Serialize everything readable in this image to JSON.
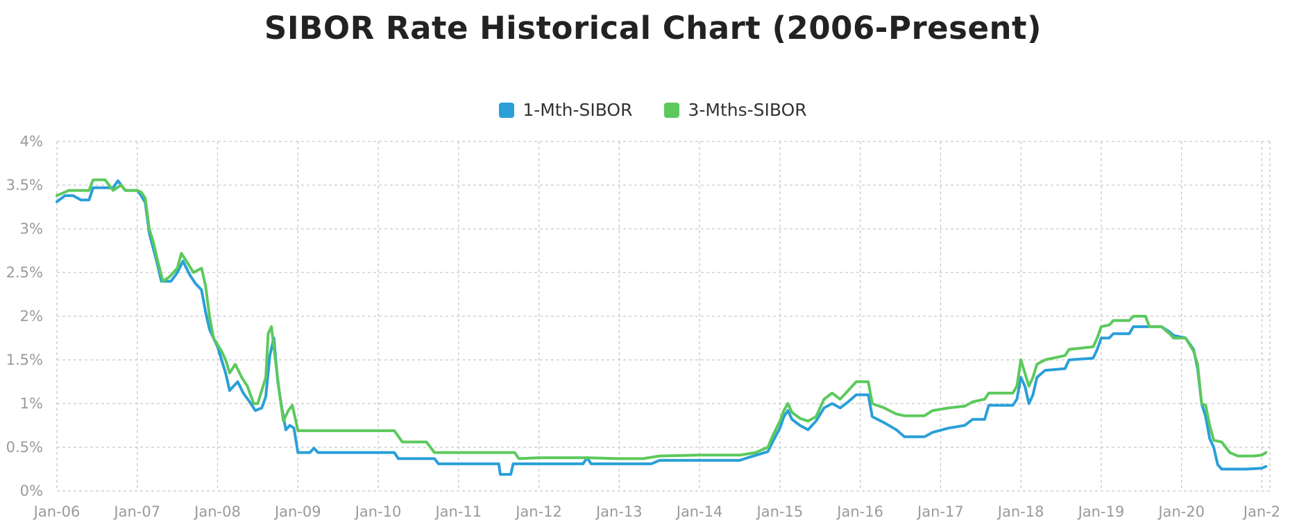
{
  "chart_data": {
    "type": "line",
    "title": "SIBOR Rate Historical Chart (2006-Present)",
    "xlabel": "",
    "ylabel": "",
    "grid": true,
    "legend_position": "top-center",
    "ylim": [
      0,
      4
    ],
    "xlim": [
      2006,
      2021.1
    ],
    "y_tick_labels": [
      "0%",
      "0.5%",
      "1%",
      "1.5%",
      "2%",
      "2.5%",
      "3%",
      "3.5%",
      "4%"
    ],
    "y_tick_values": [
      0,
      0.5,
      1,
      1.5,
      2,
      2.5,
      3,
      3.5,
      4
    ],
    "x_tick_labels": [
      "Jan-06",
      "Jan-07",
      "Jan-08",
      "Jan-09",
      "Jan-10",
      "Jan-11",
      "Jan-12",
      "Jan-13",
      "Jan-14",
      "Jan-15",
      "Jan-16",
      "Jan-17",
      "Jan-18",
      "Jan-19",
      "Jan-20",
      "Jan-2"
    ],
    "x_tick_values": [
      2006,
      2007,
      2008,
      2009,
      2010,
      2011,
      2012,
      2013,
      2014,
      2015,
      2016,
      2017,
      2018,
      2019,
      2020,
      2021
    ],
    "series": [
      {
        "name": "1-Mth-SIBOR",
        "color": "#2a9fd8",
        "points": [
          [
            2006.0,
            3.31
          ],
          [
            2006.1,
            3.38
          ],
          [
            2006.2,
            3.38
          ],
          [
            2006.3,
            3.33
          ],
          [
            2006.4,
            3.33
          ],
          [
            2006.45,
            3.47
          ],
          [
            2006.6,
            3.47
          ],
          [
            2006.7,
            3.47
          ],
          [
            2006.76,
            3.55
          ],
          [
            2006.85,
            3.44
          ],
          [
            2007.0,
            3.44
          ],
          [
            2007.05,
            3.38
          ],
          [
            2007.1,
            3.3
          ],
          [
            2007.15,
            2.95
          ],
          [
            2007.25,
            2.6
          ],
          [
            2007.3,
            2.4
          ],
          [
            2007.42,
            2.4
          ],
          [
            2007.5,
            2.5
          ],
          [
            2007.57,
            2.63
          ],
          [
            2007.65,
            2.48
          ],
          [
            2007.72,
            2.38
          ],
          [
            2007.8,
            2.3
          ],
          [
            2007.85,
            2.05
          ],
          [
            2007.9,
            1.85
          ],
          [
            2008.0,
            1.65
          ],
          [
            2008.05,
            1.5
          ],
          [
            2008.1,
            1.35
          ],
          [
            2008.15,
            1.15
          ],
          [
            2008.25,
            1.25
          ],
          [
            2008.32,
            1.12
          ],
          [
            2008.4,
            1.02
          ],
          [
            2008.47,
            0.92
          ],
          [
            2008.55,
            0.95
          ],
          [
            2008.6,
            1.08
          ],
          [
            2008.65,
            1.55
          ],
          [
            2008.7,
            1.75
          ],
          [
            2008.75,
            1.25
          ],
          [
            2008.8,
            0.95
          ],
          [
            2008.85,
            0.7
          ],
          [
            2008.9,
            0.75
          ],
          [
            2008.95,
            0.72
          ],
          [
            2009.0,
            0.44
          ],
          [
            2009.05,
            0.44
          ],
          [
            2009.15,
            0.44
          ],
          [
            2009.2,
            0.49
          ],
          [
            2009.25,
            0.44
          ],
          [
            2010.0,
            0.44
          ],
          [
            2010.2,
            0.44
          ],
          [
            2010.25,
            0.37
          ],
          [
            2010.7,
            0.37
          ],
          [
            2010.75,
            0.31
          ],
          [
            2011.0,
            0.31
          ],
          [
            2011.5,
            0.31
          ],
          [
            2011.52,
            0.19
          ],
          [
            2011.65,
            0.19
          ],
          [
            2011.68,
            0.31
          ],
          [
            2012.0,
            0.31
          ],
          [
            2012.55,
            0.31
          ],
          [
            2012.6,
            0.38
          ],
          [
            2012.65,
            0.31
          ],
          [
            2013.0,
            0.31
          ],
          [
            2013.4,
            0.31
          ],
          [
            2013.5,
            0.35
          ],
          [
            2014.0,
            0.35
          ],
          [
            2014.5,
            0.35
          ],
          [
            2014.6,
            0.38
          ],
          [
            2014.85,
            0.45
          ],
          [
            2014.92,
            0.58
          ],
          [
            2015.0,
            0.72
          ],
          [
            2015.05,
            0.85
          ],
          [
            2015.1,
            0.92
          ],
          [
            2015.15,
            0.82
          ],
          [
            2015.25,
            0.75
          ],
          [
            2015.35,
            0.7
          ],
          [
            2015.45,
            0.8
          ],
          [
            2015.55,
            0.95
          ],
          [
            2015.65,
            1.0
          ],
          [
            2015.75,
            0.95
          ],
          [
            2015.85,
            1.02
          ],
          [
            2015.95,
            1.1
          ],
          [
            2016.1,
            1.1
          ],
          [
            2016.15,
            0.85
          ],
          [
            2016.3,
            0.78
          ],
          [
            2016.45,
            0.7
          ],
          [
            2016.55,
            0.62
          ],
          [
            2016.8,
            0.62
          ],
          [
            2016.9,
            0.67
          ],
          [
            2017.1,
            0.72
          ],
          [
            2017.3,
            0.75
          ],
          [
            2017.4,
            0.82
          ],
          [
            2017.55,
            0.82
          ],
          [
            2017.6,
            0.98
          ],
          [
            2017.9,
            0.98
          ],
          [
            2017.95,
            1.05
          ],
          [
            2018.0,
            1.3
          ],
          [
            2018.05,
            1.2
          ],
          [
            2018.1,
            1.0
          ],
          [
            2018.15,
            1.1
          ],
          [
            2018.2,
            1.3
          ],
          [
            2018.3,
            1.38
          ],
          [
            2018.55,
            1.4
          ],
          [
            2018.6,
            1.5
          ],
          [
            2018.9,
            1.52
          ],
          [
            2018.95,
            1.62
          ],
          [
            2019.0,
            1.75
          ],
          [
            2019.1,
            1.75
          ],
          [
            2019.15,
            1.8
          ],
          [
            2019.35,
            1.8
          ],
          [
            2019.4,
            1.88
          ],
          [
            2019.75,
            1.88
          ],
          [
            2019.85,
            1.82
          ],
          [
            2019.9,
            1.78
          ],
          [
            2020.05,
            1.75
          ],
          [
            2020.15,
            1.62
          ],
          [
            2020.2,
            1.4
          ],
          [
            2020.25,
            1.0
          ],
          [
            2020.3,
            0.85
          ],
          [
            2020.35,
            0.6
          ],
          [
            2020.4,
            0.5
          ],
          [
            2020.45,
            0.3
          ],
          [
            2020.5,
            0.25
          ],
          [
            2020.8,
            0.25
          ],
          [
            2021.0,
            0.26
          ],
          [
            2021.05,
            0.28
          ]
        ]
      },
      {
        "name": "3-Mths-SIBOR",
        "color": "#5cc95c",
        "points": [
          [
            2006.0,
            3.38
          ],
          [
            2006.15,
            3.44
          ],
          [
            2006.4,
            3.44
          ],
          [
            2006.45,
            3.56
          ],
          [
            2006.6,
            3.56
          ],
          [
            2006.7,
            3.44
          ],
          [
            2006.8,
            3.5
          ],
          [
            2006.85,
            3.44
          ],
          [
            2007.0,
            3.44
          ],
          [
            2007.05,
            3.42
          ],
          [
            2007.1,
            3.35
          ],
          [
            2007.15,
            3.0
          ],
          [
            2007.2,
            2.85
          ],
          [
            2007.25,
            2.65
          ],
          [
            2007.32,
            2.4
          ],
          [
            2007.4,
            2.45
          ],
          [
            2007.5,
            2.55
          ],
          [
            2007.55,
            2.72
          ],
          [
            2007.62,
            2.62
          ],
          [
            2007.7,
            2.5
          ],
          [
            2007.8,
            2.55
          ],
          [
            2007.85,
            2.35
          ],
          [
            2007.9,
            2.0
          ],
          [
            2007.95,
            1.75
          ],
          [
            2008.05,
            1.6
          ],
          [
            2008.1,
            1.5
          ],
          [
            2008.15,
            1.35
          ],
          [
            2008.22,
            1.45
          ],
          [
            2008.3,
            1.3
          ],
          [
            2008.37,
            1.2
          ],
          [
            2008.45,
            1.0
          ],
          [
            2008.5,
            1.0
          ],
          [
            2008.55,
            1.15
          ],
          [
            2008.6,
            1.3
          ],
          [
            2008.63,
            1.8
          ],
          [
            2008.67,
            1.88
          ],
          [
            2008.72,
            1.5
          ],
          [
            2008.77,
            1.12
          ],
          [
            2008.82,
            0.8
          ],
          [
            2008.88,
            0.92
          ],
          [
            2008.93,
            0.98
          ],
          [
            2008.97,
            0.82
          ],
          [
            2009.0,
            0.69
          ],
          [
            2010.2,
            0.69
          ],
          [
            2010.3,
            0.56
          ],
          [
            2010.6,
            0.56
          ],
          [
            2010.7,
            0.44
          ],
          [
            2011.7,
            0.44
          ],
          [
            2011.75,
            0.37
          ],
          [
            2012.0,
            0.38
          ],
          [
            2012.4,
            0.38
          ],
          [
            2012.5,
            0.38
          ],
          [
            2012.6,
            0.38
          ],
          [
            2013.0,
            0.37
          ],
          [
            2013.3,
            0.37
          ],
          [
            2013.5,
            0.4
          ],
          [
            2014.0,
            0.41
          ],
          [
            2014.5,
            0.41
          ],
          [
            2014.7,
            0.44
          ],
          [
            2014.85,
            0.5
          ],
          [
            2014.92,
            0.65
          ],
          [
            2015.0,
            0.8
          ],
          [
            2015.05,
            0.92
          ],
          [
            2015.1,
            1.0
          ],
          [
            2015.15,
            0.9
          ],
          [
            2015.25,
            0.83
          ],
          [
            2015.35,
            0.8
          ],
          [
            2015.45,
            0.85
          ],
          [
            2015.55,
            1.05
          ],
          [
            2015.65,
            1.12
          ],
          [
            2015.75,
            1.05
          ],
          [
            2015.85,
            1.15
          ],
          [
            2015.95,
            1.25
          ],
          [
            2016.1,
            1.25
          ],
          [
            2016.15,
            1.0
          ],
          [
            2016.3,
            0.95
          ],
          [
            2016.45,
            0.88
          ],
          [
            2016.55,
            0.86
          ],
          [
            2016.8,
            0.86
          ],
          [
            2016.9,
            0.92
          ],
          [
            2017.1,
            0.95
          ],
          [
            2017.3,
            0.97
          ],
          [
            2017.4,
            1.02
          ],
          [
            2017.55,
            1.05
          ],
          [
            2017.6,
            1.12
          ],
          [
            2017.9,
            1.12
          ],
          [
            2017.95,
            1.2
          ],
          [
            2018.0,
            1.5
          ],
          [
            2018.05,
            1.35
          ],
          [
            2018.1,
            1.2
          ],
          [
            2018.15,
            1.3
          ],
          [
            2018.2,
            1.45
          ],
          [
            2018.3,
            1.5
          ],
          [
            2018.55,
            1.55
          ],
          [
            2018.6,
            1.62
          ],
          [
            2018.9,
            1.65
          ],
          [
            2018.95,
            1.75
          ],
          [
            2019.0,
            1.88
          ],
          [
            2019.1,
            1.9
          ],
          [
            2019.15,
            1.95
          ],
          [
            2019.35,
            1.95
          ],
          [
            2019.4,
            2.0
          ],
          [
            2019.55,
            2.0
          ],
          [
            2019.6,
            1.88
          ],
          [
            2019.75,
            1.88
          ],
          [
            2019.85,
            1.8
          ],
          [
            2019.9,
            1.75
          ],
          [
            2020.05,
            1.75
          ],
          [
            2020.15,
            1.6
          ],
          [
            2020.2,
            1.45
          ],
          [
            2020.25,
            1.0
          ],
          [
            2020.3,
            0.98
          ],
          [
            2020.35,
            0.75
          ],
          [
            2020.4,
            0.58
          ],
          [
            2020.5,
            0.56
          ],
          [
            2020.55,
            0.5
          ],
          [
            2020.6,
            0.44
          ],
          [
            2020.7,
            0.4
          ],
          [
            2020.9,
            0.4
          ],
          [
            2021.0,
            0.41
          ],
          [
            2021.05,
            0.44
          ]
        ]
      }
    ]
  }
}
